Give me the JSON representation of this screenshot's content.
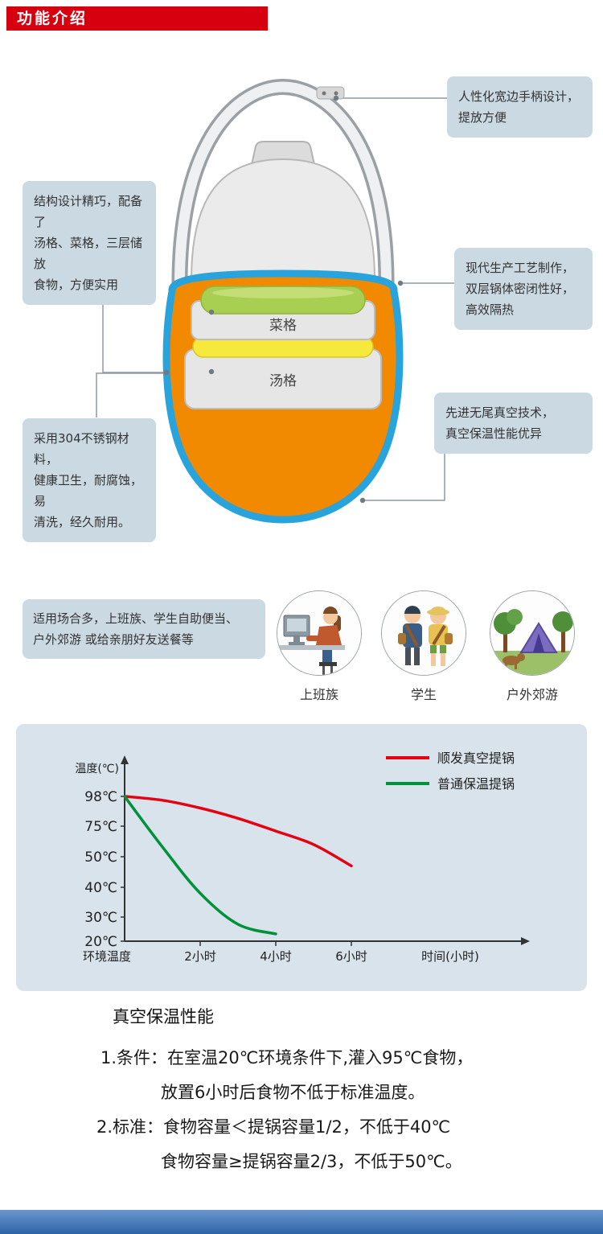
{
  "header": {
    "title": "功能介绍"
  },
  "callouts": {
    "handle": "人性化宽边手柄设计，\n提放方便",
    "structure": "结构设计精巧，配备了\n汤格、菜格，三层储放\n食物，方便实用",
    "process": "现代生产工艺制作，\n双层锅体密闭性好，\n高效隔热",
    "material": "采用304不锈钢材料，\n健康卫生，耐腐蚀，易\n清洗，经久耐用。",
    "vacuum": "先进无尾真空技术，\n真空保温性能优异"
  },
  "diagram": {
    "labels": {
      "vegetable": "菜格",
      "soup": "汤格"
    }
  },
  "usage": {
    "text": "适用场合多，上班族、学生自助便当、\n户外郊游 或给亲朋好友送餐等",
    "scenes": [
      {
        "label": "上班族"
      },
      {
        "label": "学生"
      },
      {
        "label": "户外郊游"
      }
    ]
  },
  "chart_data": {
    "type": "line",
    "title": "",
    "ylabel": "温度(℃)",
    "xlabel": "时间(小时)",
    "x_axis_origin_label": "环境温度",
    "y_ticks": [
      98,
      75,
      50,
      40,
      30,
      20
    ],
    "y_tick_labels": [
      "98℃",
      "75℃",
      "50℃",
      "40℃",
      "30℃",
      "20℃"
    ],
    "x_ticks": [
      2,
      4,
      6
    ],
    "x_tick_labels": [
      "2小时",
      "4小时",
      "6小时"
    ],
    "grid": false,
    "legend_position": "top-right",
    "series": [
      {
        "name": "顺发真空提锅",
        "color": "#e60012",
        "x": [
          0,
          1,
          2,
          3,
          4,
          5,
          6
        ],
        "values": [
          98,
          95,
          89,
          81,
          71,
          60,
          47
        ]
      },
      {
        "name": "普通保温提锅",
        "color": "#00913a",
        "x": [
          0,
          1,
          2,
          3,
          4
        ],
        "values": [
          98,
          58,
          38,
          27,
          23
        ]
      }
    ]
  },
  "performance": {
    "title": "真空保温性能",
    "lines": [
      "1.条件：在室温20℃环境条件下,灌入95℃食物，",
      "放置6小时后食物不低于标准温度。",
      "2.标准：食物容量＜提锅容量1/2，不低于40℃",
      "食物容量≥提锅容量2/3，不低于50℃。"
    ]
  },
  "colors": {
    "header_red": "#d7000f",
    "callout_bg": "#cbd9e3",
    "pot_orange": "#f18a00",
    "pot_blue": "#29a3dc",
    "rim_green": "#a9cf52",
    "rim_yellow": "#f6e93b",
    "chart_bg": "#d9e3eb",
    "footer_blue": "#2e63a8",
    "line_red": "#e60012",
    "line_green": "#00913a"
  }
}
